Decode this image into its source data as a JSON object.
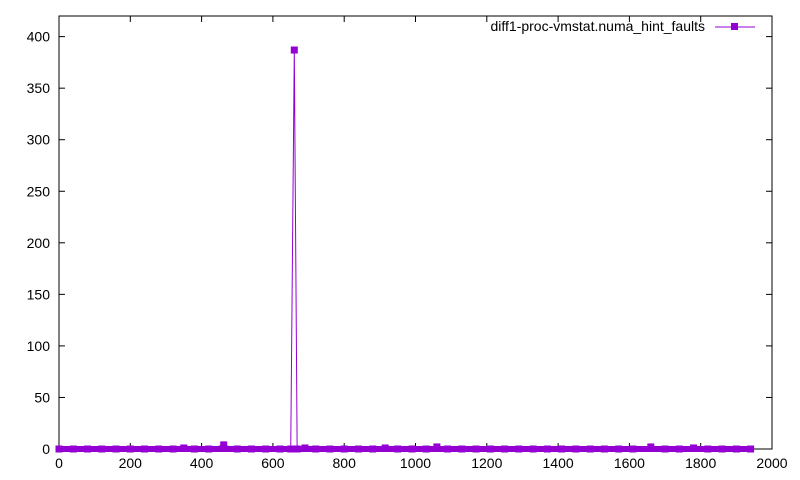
{
  "chart_data": {
    "type": "line",
    "title": "",
    "xlabel": "",
    "ylabel": "",
    "xlim": [
      0,
      2000
    ],
    "ylim": [
      0,
      420
    ],
    "xticks": [
      0,
      200,
      400,
      600,
      800,
      1000,
      1200,
      1400,
      1600,
      1800,
      2000
    ],
    "yticks": [
      0,
      50,
      100,
      150,
      200,
      250,
      300,
      350,
      400
    ],
    "grid": false,
    "legend_position": "top-right",
    "series": [
      {
        "name": "diff1-proc-vmstat.numa_hint_faults",
        "color": "#9400d3",
        "marker": "square",
        "points": [
          [
            0,
            0
          ],
          [
            40,
            0
          ],
          [
            80,
            0
          ],
          [
            120,
            0
          ],
          [
            160,
            0
          ],
          [
            200,
            0
          ],
          [
            240,
            0
          ],
          [
            280,
            0
          ],
          [
            320,
            0
          ],
          [
            350,
            1
          ],
          [
            380,
            0
          ],
          [
            420,
            0
          ],
          [
            462,
            4
          ],
          [
            500,
            0
          ],
          [
            540,
            0
          ],
          [
            580,
            0
          ],
          [
            620,
            0
          ],
          [
            650,
            0
          ],
          [
            660,
            387
          ],
          [
            668,
            0
          ],
          [
            690,
            1
          ],
          [
            720,
            0
          ],
          [
            760,
            0
          ],
          [
            800,
            0
          ],
          [
            840,
            0
          ],
          [
            880,
            0
          ],
          [
            915,
            1
          ],
          [
            950,
            0
          ],
          [
            990,
            0
          ],
          [
            1030,
            0
          ],
          [
            1060,
            2
          ],
          [
            1090,
            0
          ],
          [
            1130,
            0
          ],
          [
            1170,
            0
          ],
          [
            1210,
            0
          ],
          [
            1250,
            0
          ],
          [
            1290,
            0
          ],
          [
            1330,
            0
          ],
          [
            1370,
            0
          ],
          [
            1410,
            0
          ],
          [
            1450,
            0
          ],
          [
            1490,
            0
          ],
          [
            1530,
            0
          ],
          [
            1570,
            0
          ],
          [
            1610,
            0
          ],
          [
            1660,
            2
          ],
          [
            1700,
            0
          ],
          [
            1740,
            0
          ],
          [
            1780,
            1
          ],
          [
            1820,
            0
          ],
          [
            1860,
            0
          ],
          [
            1900,
            0
          ],
          [
            1940,
            0
          ]
        ]
      }
    ]
  }
}
